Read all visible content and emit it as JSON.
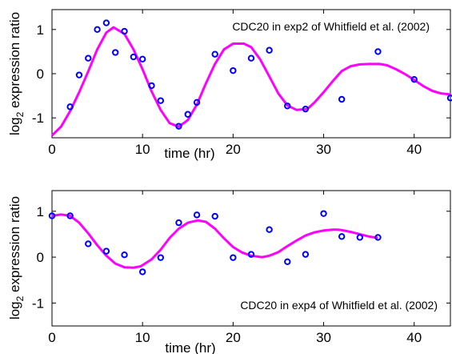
{
  "chart_data": [
    {
      "type": "scatter",
      "annotation": "CDC20 in exp2 of Whitfield et al. (2002)",
      "xlabel": "time (hr)",
      "ylabel": "log",
      "ylabel_sub": "2",
      "ylabel_rest": " expression ratio",
      "xlim": [
        0,
        44
      ],
      "ylim": [
        -1.45,
        1.45
      ],
      "xticks": [
        "0",
        "10",
        "20",
        "30",
        "40"
      ],
      "yticks": [
        "-1",
        "0",
        "1"
      ],
      "xtick_values": [
        0,
        10,
        20,
        30,
        40
      ],
      "ytick_values": [
        -1,
        0,
        1
      ],
      "grid": false,
      "series": [
        {
          "kind": "points",
          "color": "#0000ff",
          "x": [
            2,
            3,
            4,
            5,
            6,
            7,
            8,
            9,
            10,
            11,
            12,
            14,
            15,
            16,
            18,
            20,
            22,
            24,
            26,
            28,
            32,
            36,
            40,
            44
          ],
          "y": [
            -0.75,
            -0.03,
            0.35,
            1.0,
            1.15,
            0.48,
            0.96,
            0.38,
            0.33,
            -0.27,
            -0.61,
            -1.19,
            -0.92,
            -0.65,
            0.44,
            0.07,
            0.35,
            0.53,
            -0.73,
            -0.8,
            -0.58,
            0.5,
            -0.13,
            -0.55
          ]
        },
        {
          "kind": "curve",
          "color": "#ff00ff",
          "x": [
            0,
            1,
            2,
            3,
            4,
            5,
            6,
            6.8,
            8,
            9,
            10,
            11,
            12,
            13,
            14,
            15,
            16,
            17,
            18,
            19,
            20,
            21.2,
            22,
            23,
            24,
            25,
            26,
            27,
            28.2,
            29,
            30,
            31,
            32,
            33,
            34,
            35,
            36.2,
            37,
            38,
            39,
            40,
            41,
            42,
            43,
            44
          ],
          "y": [
            -1.4,
            -1.2,
            -0.85,
            -0.42,
            0.05,
            0.55,
            0.93,
            1.05,
            0.9,
            0.55,
            0.1,
            -0.4,
            -0.82,
            -1.12,
            -1.2,
            -1.05,
            -0.7,
            -0.22,
            0.22,
            0.55,
            0.68,
            0.68,
            0.6,
            0.32,
            -0.06,
            -0.45,
            -0.72,
            -0.82,
            -0.8,
            -0.65,
            -0.42,
            -0.17,
            0.06,
            0.17,
            0.21,
            0.22,
            0.22,
            0.19,
            0.1,
            -0.01,
            -0.14,
            -0.28,
            -0.39,
            -0.45,
            -0.47
          ]
        }
      ]
    },
    {
      "type": "scatter",
      "annotation": "CDC20 in exp4 of Whitfield et al. (2002)",
      "xlabel": "time (hr)",
      "ylabel": "log",
      "ylabel_sub": "2",
      "ylabel_rest": " expression ratio",
      "xlim": [
        0,
        44
      ],
      "ylim": [
        -1.5,
        1.45
      ],
      "xticks": [
        "0",
        "10",
        "20",
        "30",
        "40"
      ],
      "yticks": [
        "-1",
        "0",
        "1"
      ],
      "xtick_values": [
        0,
        10,
        20,
        30,
        40
      ],
      "ytick_values": [
        -1,
        0,
        1
      ],
      "grid": false,
      "series": [
        {
          "kind": "points",
          "color": "#0000ff",
          "x": [
            0,
            2,
            4,
            6,
            8,
            10,
            12,
            14,
            16,
            18,
            20,
            22,
            24,
            26,
            28,
            30,
            32,
            34,
            36
          ],
          "y": [
            0.9,
            0.9,
            0.29,
            0.13,
            0.05,
            -0.32,
            -0.01,
            0.75,
            0.92,
            0.89,
            -0.01,
            0.06,
            0.6,
            -0.1,
            0.06,
            0.95,
            0.45,
            0.43,
            0.43
          ]
        },
        {
          "kind": "curve",
          "color": "#ff00ff",
          "x": [
            0,
            1,
            2,
            3,
            4,
            5,
            6,
            7,
            8,
            9,
            9.8,
            11,
            12,
            13,
            14,
            15,
            16.1,
            17,
            18,
            19,
            20,
            21,
            22,
            23.2,
            24,
            25,
            26,
            27,
            28,
            29,
            30,
            31,
            31.5,
            32,
            33,
            34,
            35,
            36
          ],
          "y": [
            0.9,
            0.93,
            0.9,
            0.75,
            0.52,
            0.26,
            0.03,
            -0.14,
            -0.22,
            -0.23,
            -0.2,
            -0.05,
            0.16,
            0.42,
            0.62,
            0.75,
            0.8,
            0.77,
            0.62,
            0.41,
            0.22,
            0.1,
            0.03,
            0.0,
            0.03,
            0.11,
            0.24,
            0.36,
            0.47,
            0.54,
            0.58,
            0.6,
            0.6,
            0.59,
            0.55,
            0.5,
            0.45,
            0.42
          ]
        }
      ]
    }
  ]
}
